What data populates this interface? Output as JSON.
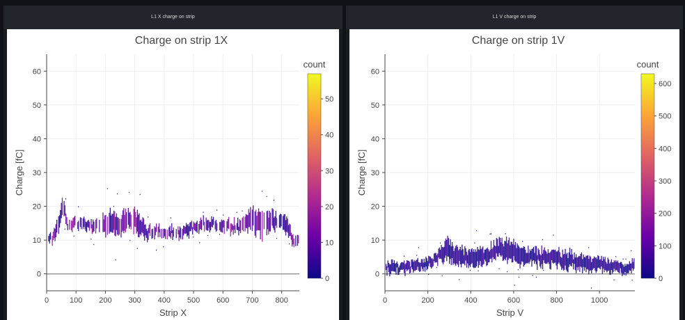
{
  "panels": [
    {
      "header": "L1 X charge on strip"
    },
    {
      "header": "L1 V charge on strip"
    }
  ],
  "chart_data": [
    {
      "type": "heatmap",
      "title": "Charge on strip 1X",
      "xlabel": "Strip X",
      "ylabel": "Charge [fC]",
      "xlim": [
        0,
        860
      ],
      "ylim": [
        -5,
        65
      ],
      "xticks": [
        0,
        100,
        200,
        300,
        400,
        500,
        600,
        700,
        800
      ],
      "yticks": [
        0,
        10,
        20,
        30,
        40,
        50,
        60
      ],
      "grid": true,
      "colorbar": {
        "title": "count",
        "range": [
          0,
          57
        ],
        "ticks": [
          0,
          10,
          20,
          30,
          40,
          50
        ]
      },
      "colorscale": [
        "#0d0887",
        "#6a00a8",
        "#b12a90",
        "#e16462",
        "#fca636",
        "#f0f921"
      ],
      "profile": [
        {
          "x": 0,
          "y": 9,
          "spread": 2
        },
        {
          "x": 20,
          "y": 11,
          "spread": 2
        },
        {
          "x": 40,
          "y": 15,
          "spread": 3
        },
        {
          "x": 55,
          "y": 21,
          "spread": 3
        },
        {
          "x": 70,
          "y": 14,
          "spread": 2
        },
        {
          "x": 100,
          "y": 15,
          "spread": 2
        },
        {
          "x": 150,
          "y": 14,
          "spread": 2
        },
        {
          "x": 200,
          "y": 15,
          "spread": 4
        },
        {
          "x": 250,
          "y": 15,
          "spread": 4
        },
        {
          "x": 280,
          "y": 17,
          "spread": 4
        },
        {
          "x": 310,
          "y": 15,
          "spread": 4
        },
        {
          "x": 340,
          "y": 12,
          "spread": 2
        },
        {
          "x": 400,
          "y": 13,
          "spread": 2
        },
        {
          "x": 450,
          "y": 12,
          "spread": 2
        },
        {
          "x": 500,
          "y": 14,
          "spread": 2
        },
        {
          "x": 550,
          "y": 15,
          "spread": 2
        },
        {
          "x": 600,
          "y": 14,
          "spread": 2
        },
        {
          "x": 650,
          "y": 14,
          "spread": 2
        },
        {
          "x": 700,
          "y": 16,
          "spread": 4
        },
        {
          "x": 740,
          "y": 15,
          "spread": 5
        },
        {
          "x": 780,
          "y": 16,
          "spread": 3
        },
        {
          "x": 810,
          "y": 15,
          "spread": 3
        },
        {
          "x": 840,
          "y": 10,
          "spread": 2
        },
        {
          "x": 855,
          "y": 10,
          "spread": 2
        }
      ]
    },
    {
      "type": "heatmap",
      "title": "Charge on strip 1V",
      "xlabel": "Strip V",
      "ylabel": "Charge [fC]",
      "xlim": [
        0,
        1165
      ],
      "ylim": [
        -5,
        65
      ],
      "xticks": [
        0,
        200,
        400,
        600,
        800,
        1000
      ],
      "yticks": [
        0,
        10,
        20,
        30,
        40,
        50,
        60
      ],
      "grid": true,
      "colorbar": {
        "title": "count",
        "range": [
          0,
          630
        ],
        "ticks": [
          0,
          100,
          200,
          300,
          400,
          500,
          600
        ]
      },
      "colorscale": [
        "#0d0887",
        "#6a00a8",
        "#b12a90",
        "#e16462",
        "#fca636",
        "#f0f921"
      ],
      "profile": [
        {
          "x": 0,
          "y": 2,
          "spread": 2
        },
        {
          "x": 100,
          "y": 2,
          "spread": 2
        },
        {
          "x": 200,
          "y": 3,
          "spread": 2
        },
        {
          "x": 250,
          "y": 5,
          "spread": 2
        },
        {
          "x": 290,
          "y": 7,
          "spread": 4
        },
        {
          "x": 350,
          "y": 5,
          "spread": 3
        },
        {
          "x": 450,
          "y": 5,
          "spread": 3
        },
        {
          "x": 520,
          "y": 7,
          "spread": 3
        },
        {
          "x": 580,
          "y": 7,
          "spread": 4
        },
        {
          "x": 650,
          "y": 5,
          "spread": 3
        },
        {
          "x": 750,
          "y": 5,
          "spread": 3
        },
        {
          "x": 850,
          "y": 4,
          "spread": 3
        },
        {
          "x": 950,
          "y": 3,
          "spread": 3
        },
        {
          "x": 1050,
          "y": 2,
          "spread": 2
        },
        {
          "x": 1165,
          "y": 2,
          "spread": 2
        }
      ]
    }
  ]
}
